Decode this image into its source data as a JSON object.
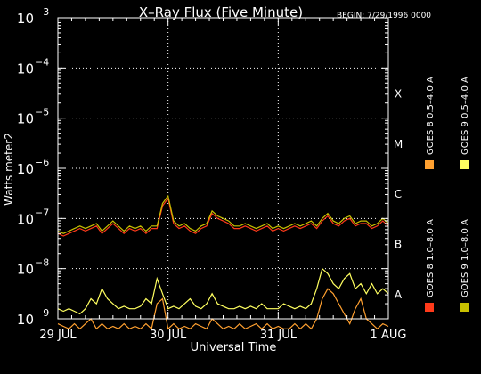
{
  "chart_data": {
    "type": "line",
    "title": "X–Ray Flux (Five Minute)",
    "begin_label": "BEGIN: 7/29/1996 0000",
    "ylabel": "Watts meter2",
    "xlabel": "Universal Time",
    "yscale": "log",
    "ylim_exponents": [
      -9,
      -3
    ],
    "y_ticks": [
      {
        "base": "10",
        "exp": "−3",
        "value": -3
      },
      {
        "base": "10",
        "exp": "−4",
        "value": -4
      },
      {
        "base": "10",
        "exp": "−5",
        "value": -5
      },
      {
        "base": "10",
        "exp": "−6",
        "value": -6
      },
      {
        "base": "10",
        "exp": "−7",
        "value": -7
      },
      {
        "base": "10",
        "exp": "−8",
        "value": -8
      },
      {
        "base": "10",
        "exp": "−9",
        "value": -9
      }
    ],
    "xlim_days": [
      0,
      3
    ],
    "x_ticks": [
      {
        "label": "29 JUL",
        "day": 0
      },
      {
        "label": "30 JUL",
        "day": 1
      },
      {
        "label": "31 JUL",
        "day": 2
      },
      {
        "label": "1 AUG",
        "day": 3
      }
    ],
    "flare_classes": [
      {
        "label": "X",
        "value": -4
      },
      {
        "label": "M",
        "value": -5
      },
      {
        "label": "C",
        "value": -6
      },
      {
        "label": "B",
        "value": -7
      },
      {
        "label": "A",
        "value": -8
      }
    ],
    "grid": {
      "horizontal_dotted": true,
      "vertical_dotted_at_days": [
        1,
        2
      ]
    },
    "legend_placement": "right",
    "series": [
      {
        "name": "GOES 8 1.0–8.0 A",
        "color": "#ff3a1a",
        "day": [
          0.0,
          0.05,
          0.1,
          0.15,
          0.2,
          0.25,
          0.3,
          0.35,
          0.4,
          0.45,
          0.5,
          0.55,
          0.6,
          0.65,
          0.7,
          0.75,
          0.8,
          0.85,
          0.9,
          0.95,
          1.0,
          1.05,
          1.1,
          1.15,
          1.2,
          1.25,
          1.3,
          1.35,
          1.4,
          1.45,
          1.5,
          1.55,
          1.6,
          1.65,
          1.7,
          1.75,
          1.8,
          1.85,
          1.9,
          1.95,
          2.0,
          2.05,
          2.1,
          2.15,
          2.2,
          2.25,
          2.3,
          2.35,
          2.4,
          2.45,
          2.5,
          2.55,
          2.6,
          2.65,
          2.7,
          2.75,
          2.8,
          2.85,
          2.9,
          2.95,
          3.0
        ],
        "log10_flux": [
          -7.3,
          -7.35,
          -7.3,
          -7.25,
          -7.2,
          -7.25,
          -7.2,
          -7.15,
          -7.3,
          -7.2,
          -7.1,
          -7.2,
          -7.3,
          -7.2,
          -7.25,
          -7.2,
          -7.3,
          -7.2,
          -7.2,
          -6.75,
          -6.6,
          -7.1,
          -7.2,
          -7.15,
          -7.25,
          -7.3,
          -7.2,
          -7.15,
          -6.9,
          -7.0,
          -7.05,
          -7.1,
          -7.2,
          -7.2,
          -7.15,
          -7.2,
          -7.25,
          -7.2,
          -7.15,
          -7.25,
          -7.2,
          -7.25,
          -7.2,
          -7.15,
          -7.2,
          -7.15,
          -7.1,
          -7.2,
          -7.05,
          -6.95,
          -7.1,
          -7.15,
          -7.05,
          -7.0,
          -7.15,
          -7.1,
          -7.1,
          -7.2,
          -7.15,
          -7.05,
          -7.15
        ]
      },
      {
        "name": "GOES 8 0.5–4.0 A",
        "color": "#ffa030",
        "day": [
          0.0,
          0.05,
          0.1,
          0.15,
          0.2,
          0.25,
          0.3,
          0.35,
          0.4,
          0.45,
          0.5,
          0.55,
          0.6,
          0.65,
          0.7,
          0.75,
          0.8,
          0.85,
          0.9,
          0.95,
          1.0,
          1.05,
          1.1,
          1.15,
          1.2,
          1.25,
          1.3,
          1.35,
          1.4,
          1.45,
          1.5,
          1.55,
          1.6,
          1.65,
          1.7,
          1.75,
          1.8,
          1.85,
          1.9,
          1.95,
          2.0,
          2.05,
          2.1,
          2.15,
          2.2,
          2.25,
          2.3,
          2.35,
          2.4,
          2.45,
          2.5,
          2.55,
          2.6,
          2.65,
          2.7,
          2.75,
          2.8,
          2.85,
          2.9,
          2.95,
          3.0
        ],
        "log10_flux": [
          -9.1,
          -9.15,
          -9.2,
          -9.1,
          -9.2,
          -9.1,
          -9.0,
          -9.2,
          -9.1,
          -9.2,
          -9.15,
          -9.2,
          -9.1,
          -9.2,
          -9.15,
          -9.2,
          -9.1,
          -9.2,
          -8.7,
          -8.6,
          -9.2,
          -9.1,
          -9.2,
          -9.15,
          -9.2,
          -9.1,
          -9.15,
          -9.2,
          -9.0,
          -9.1,
          -9.2,
          -9.15,
          -9.2,
          -9.1,
          -9.2,
          -9.15,
          -9.1,
          -9.2,
          -9.1,
          -9.2,
          -9.15,
          -9.2,
          -9.2,
          -9.1,
          -9.2,
          -9.1,
          -9.2,
          -9.0,
          -8.6,
          -8.4,
          -8.5,
          -8.7,
          -8.9,
          -9.1,
          -8.8,
          -8.6,
          -9.0,
          -9.1,
          -9.2,
          -9.1,
          -9.15
        ]
      },
      {
        "name": "GOES 9 1.0–8.0 A",
        "color": "#c8c000",
        "day": [
          0.0,
          0.05,
          0.1,
          0.15,
          0.2,
          0.25,
          0.3,
          0.35,
          0.4,
          0.45,
          0.5,
          0.55,
          0.6,
          0.65,
          0.7,
          0.75,
          0.8,
          0.85,
          0.9,
          0.95,
          1.0,
          1.05,
          1.1,
          1.15,
          1.2,
          1.25,
          1.3,
          1.35,
          1.4,
          1.45,
          1.5,
          1.55,
          1.6,
          1.65,
          1.7,
          1.75,
          1.8,
          1.85,
          1.9,
          1.95,
          2.0,
          2.05,
          2.1,
          2.15,
          2.2,
          2.25,
          2.3,
          2.35,
          2.4,
          2.45,
          2.5,
          2.55,
          2.6,
          2.65,
          2.7,
          2.75,
          2.8,
          2.85,
          2.9,
          2.95,
          3.0
        ],
        "log10_flux": [
          -7.25,
          -7.3,
          -7.25,
          -7.2,
          -7.15,
          -7.2,
          -7.15,
          -7.1,
          -7.25,
          -7.15,
          -7.05,
          -7.15,
          -7.25,
          -7.15,
          -7.2,
          -7.15,
          -7.25,
          -7.15,
          -7.15,
          -6.7,
          -6.55,
          -7.05,
          -7.15,
          -7.1,
          -7.2,
          -7.25,
          -7.15,
          -7.1,
          -6.85,
          -6.95,
          -7.0,
          -7.05,
          -7.15,
          -7.15,
          -7.1,
          -7.15,
          -7.2,
          -7.15,
          -7.1,
          -7.2,
          -7.15,
          -7.2,
          -7.15,
          -7.1,
          -7.15,
          -7.1,
          -7.05,
          -7.15,
          -7.0,
          -6.9,
          -7.05,
          -7.1,
          -7.0,
          -6.95,
          -7.1,
          -7.05,
          -7.05,
          -7.15,
          -7.1,
          -7.0,
          -7.1
        ]
      },
      {
        "name": "GOES 9 0.5–4.0 A",
        "color": "#ffff60",
        "day": [
          0.0,
          0.05,
          0.1,
          0.15,
          0.2,
          0.25,
          0.3,
          0.35,
          0.4,
          0.45,
          0.5,
          0.55,
          0.6,
          0.65,
          0.7,
          0.75,
          0.8,
          0.85,
          0.9,
          0.95,
          1.0,
          1.05,
          1.1,
          1.15,
          1.2,
          1.25,
          1.3,
          1.35,
          1.4,
          1.45,
          1.5,
          1.55,
          1.6,
          1.65,
          1.7,
          1.75,
          1.8,
          1.85,
          1.9,
          1.95,
          2.0,
          2.05,
          2.1,
          2.15,
          2.2,
          2.25,
          2.3,
          2.35,
          2.4,
          2.45,
          2.5,
          2.55,
          2.6,
          2.65,
          2.7,
          2.75,
          2.8,
          2.85,
          2.9,
          2.95,
          3.0
        ],
        "log10_flux": [
          -8.8,
          -8.85,
          -8.8,
          -8.85,
          -8.9,
          -8.8,
          -8.6,
          -8.7,
          -8.4,
          -8.6,
          -8.7,
          -8.8,
          -8.75,
          -8.8,
          -8.8,
          -8.75,
          -8.6,
          -8.7,
          -8.2,
          -8.5,
          -8.8,
          -8.75,
          -8.8,
          -8.7,
          -8.6,
          -8.75,
          -8.8,
          -8.7,
          -8.5,
          -8.7,
          -8.75,
          -8.8,
          -8.8,
          -8.75,
          -8.8,
          -8.75,
          -8.8,
          -8.7,
          -8.8,
          -8.8,
          -8.8,
          -8.7,
          -8.75,
          -8.8,
          -8.75,
          -8.8,
          -8.7,
          -8.4,
          -8.0,
          -8.1,
          -8.3,
          -8.4,
          -8.2,
          -8.1,
          -8.4,
          -8.3,
          -8.5,
          -8.3,
          -8.5,
          -8.4,
          -8.5
        ]
      }
    ]
  }
}
